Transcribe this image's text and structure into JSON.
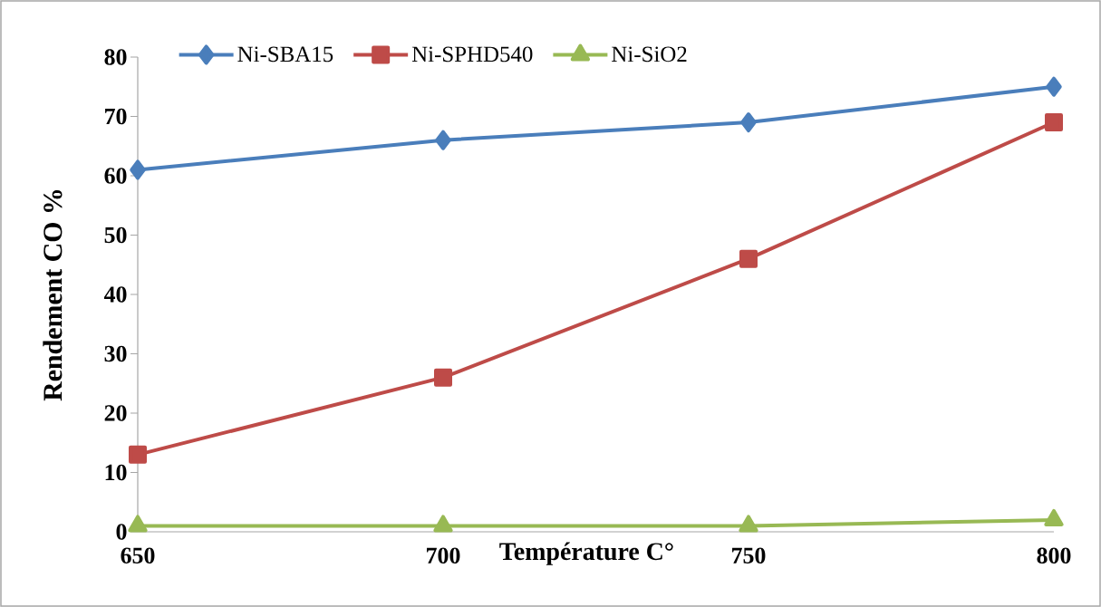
{
  "chart_data": {
    "type": "line",
    "xlabel": "Température C°",
    "ylabel": "Rendement CO %",
    "categories": [
      "650",
      "700",
      "750",
      "800"
    ],
    "series": [
      {
        "name": "Ni-SBA15",
        "color": "#4a7ebb",
        "marker": "diamond",
        "values": [
          61,
          66,
          69,
          75
        ]
      },
      {
        "name": "Ni-SPHD540",
        "color": "#be4b48",
        "marker": "square",
        "values": [
          13,
          26,
          46,
          69
        ]
      },
      {
        "name": "Ni-SiO2",
        "color": "#98b954",
        "marker": "triangle",
        "values": [
          1,
          1,
          1,
          2
        ]
      }
    ],
    "ylim": [
      0,
      80
    ],
    "yticks": [
      0,
      10,
      20,
      30,
      40,
      50,
      60,
      70,
      80
    ],
    "grid": false,
    "legend": "top"
  }
}
